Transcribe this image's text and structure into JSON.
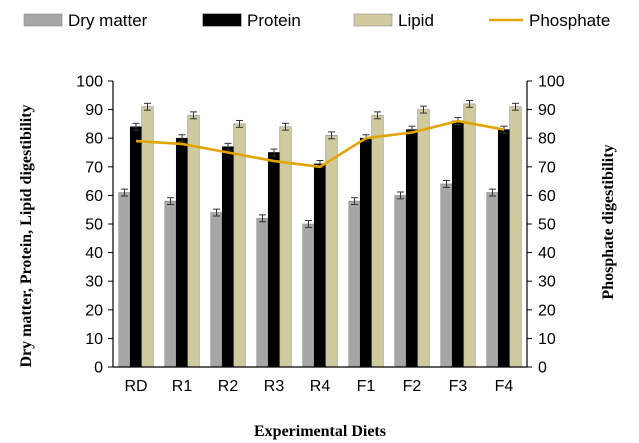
{
  "chart_data": {
    "type": "bar",
    "categories": [
      "RD",
      "R1",
      "R2",
      "R3",
      "R4",
      "F1",
      "F2",
      "F3",
      "F4"
    ],
    "series": [
      {
        "name": "Dry matter",
        "kind": "bar",
        "color": "#a6a6a6",
        "values": [
          61,
          58,
          54,
          52,
          50,
          58,
          60,
          64,
          61
        ],
        "errors": [
          1.2,
          1.2,
          1.2,
          1.2,
          1.2,
          1.2,
          1.2,
          1.2,
          1.2
        ]
      },
      {
        "name": "Protein",
        "kind": "bar",
        "color": "#000000",
        "values": [
          84,
          80,
          77,
          75,
          71,
          80,
          83,
          86,
          83
        ],
        "errors": [
          1.2,
          1.2,
          1.2,
          1.2,
          1.2,
          1.2,
          1.2,
          1.2,
          1.2
        ]
      },
      {
        "name": "Lipid",
        "kind": "bar",
        "color": "#d0cb9f",
        "values": [
          91,
          88,
          85,
          84,
          81,
          88,
          90,
          92,
          91
        ],
        "errors": [
          1.2,
          1.2,
          1.2,
          1.2,
          1.2,
          1.2,
          1.2,
          1.2,
          1.2
        ]
      },
      {
        "name": "Phosphate",
        "kind": "line",
        "color": "#e2a400",
        "axis": "right",
        "values": [
          79,
          78,
          75,
          72,
          70,
          80,
          82,
          86,
          83
        ]
      }
    ],
    "xlabel": "Experimental Diets",
    "ylabel": "Dry matter, Protein, Lipid digestibility",
    "y2label": "Phosphate digestibility",
    "ylim": [
      0,
      100
    ],
    "y2lim": [
      0,
      100
    ],
    "yticks": [
      0,
      10,
      20,
      30,
      40,
      50,
      60,
      70,
      80,
      90,
      100
    ],
    "grid": false,
    "legend": "top"
  }
}
